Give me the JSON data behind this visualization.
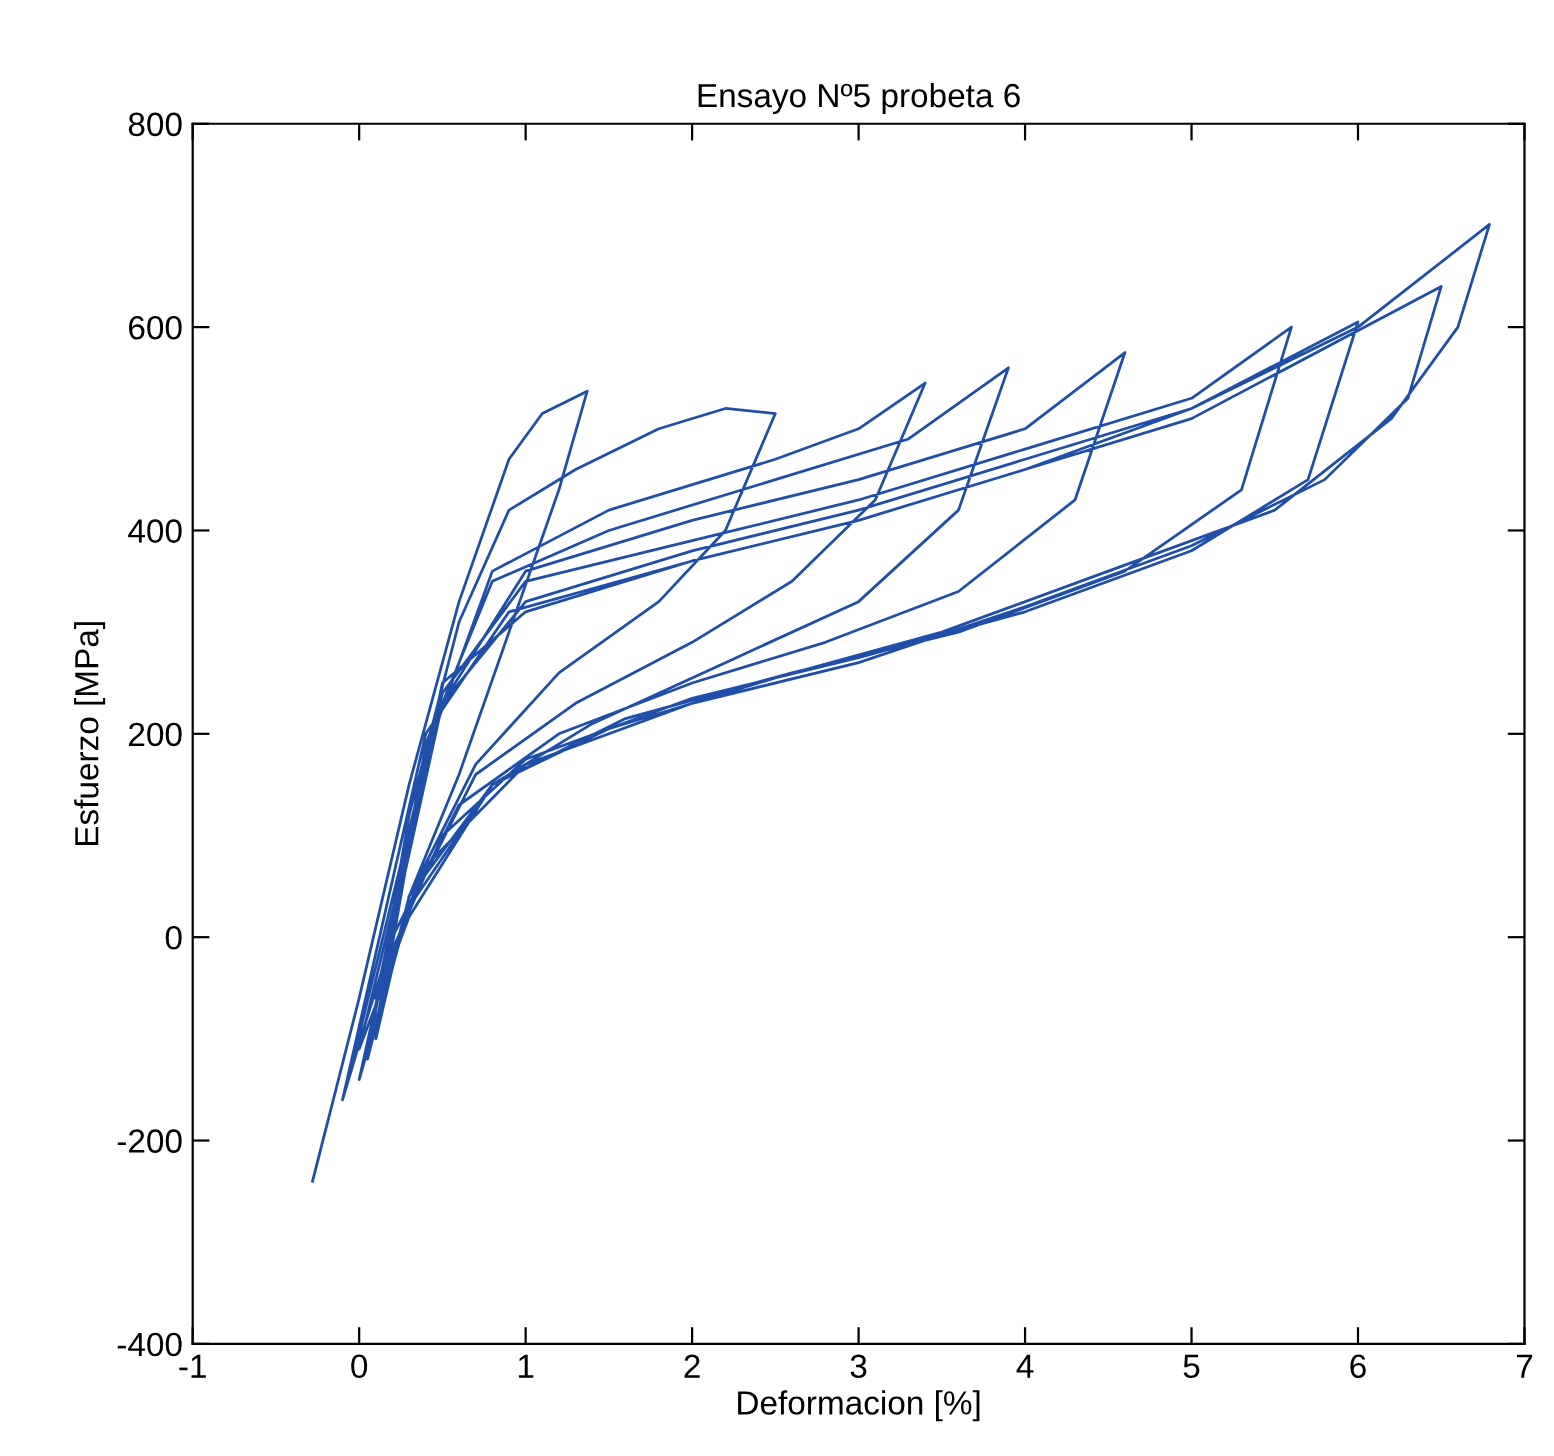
{
  "chart_data": {
    "type": "line",
    "title": "Ensayo Nº5 probeta 6",
    "xlabel": "Deformacion [%]",
    "ylabel": "Esfuerzo [MPa]",
    "xlim": [
      -1,
      7
    ],
    "xticks": [
      -1,
      0,
      1,
      2,
      3,
      4,
      5,
      6,
      7
    ],
    "ylim": [
      -400,
      800
    ],
    "yticks": [
      -400,
      -200,
      0,
      200,
      400,
      600,
      800
    ],
    "grid": false,
    "marker": "none",
    "line_style": "solid",
    "series": [
      {
        "color": "#1f4fa8",
        "x": [
          -0.28,
          0,
          0.3,
          0.6,
          0.9,
          1.1,
          1.37,
          1.2,
          0.9,
          0.6,
          0.3,
          0.05,
          0.3,
          0.6,
          0.9,
          1.3,
          1.8,
          2.2,
          2.5,
          2.2,
          1.8,
          1.2,
          0.7,
          0.3,
          0.1,
          0.4,
          0.8,
          1.5,
          2.5,
          3.0,
          3.4,
          3.1,
          2.6,
          2.0,
          1.3,
          0.7,
          0.3,
          0.1,
          0.4,
          0.8,
          1.5,
          2.5,
          3.3,
          3.9,
          3.6,
          3.0,
          2.2,
          1.4,
          0.8,
          0.3,
          0.0,
          0.5,
          1.0,
          2,
          3,
          4,
          4.6,
          4.3,
          3.6,
          2.8,
          2.0,
          1.2,
          0.6,
          0.2,
          -0.05,
          0.5,
          1.0,
          2,
          3,
          4,
          5,
          5.6,
          5.3,
          4.6,
          3.6,
          2.6,
          1.6,
          0.8,
          0.3,
          0,
          0.5,
          1.0,
          2,
          3,
          4,
          5,
          6.0,
          5.7,
          5.0,
          4.0,
          3.0,
          2.0,
          1.0,
          0.5,
          0.1,
          -0.1,
          0.4,
          0.9,
          2,
          3,
          4,
          5,
          6.5,
          6.3,
          5.8,
          5.0,
          4.0,
          3.0,
          2.0,
          1.0,
          0.4,
          0.1,
          0.5,
          1.0,
          2,
          3,
          4,
          5,
          6,
          6.79,
          6.6,
          6.2,
          5.5,
          4.5,
          3.5,
          2.5,
          1.5,
          0.8,
          0.3
        ],
        "values": [
          -240,
          -60,
          150,
          330,
          470,
          515,
          537,
          440,
          300,
          160,
          40,
          -120,
          120,
          310,
          420,
          460,
          500,
          520,
          515,
          400,
          330,
          260,
          170,
          40,
          -100,
          180,
          360,
          420,
          470,
          500,
          545,
          430,
          350,
          290,
          230,
          160,
          30,
          -90,
          190,
          350,
          400,
          450,
          490,
          560,
          420,
          330,
          270,
          210,
          150,
          20,
          -110,
          230,
          360,
          410,
          450,
          500,
          575,
          430,
          340,
          290,
          250,
          200,
          130,
          0,
          -130,
          240,
          350,
          390,
          430,
          480,
          530,
          600,
          440,
          360,
          300,
          260,
          215,
          150,
          30,
          -140,
          230,
          330,
          380,
          420,
          470,
          520,
          605,
          450,
          380,
          320,
          275,
          235,
          175,
          100,
          -50,
          -160,
          200,
          320,
          370,
          410,
          460,
          510,
          640,
          530,
          450,
          385,
          325,
          270,
          230,
          170,
          70,
          -60,
          250,
          320,
          370,
          410,
          460,
          520,
          600,
          701,
          600,
          510,
          420,
          360,
          300,
          255,
          205,
          150,
          40
        ]
      }
    ]
  }
}
